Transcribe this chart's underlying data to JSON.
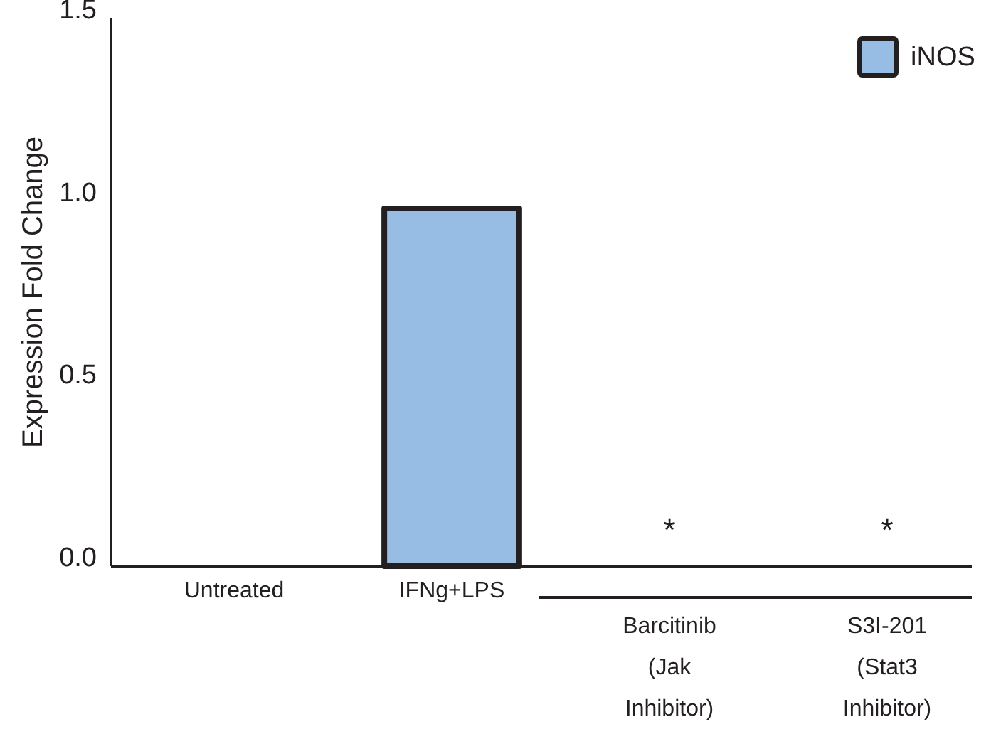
{
  "chart_data": {
    "type": "bar",
    "ylabel": "Expression Fold Change",
    "categories": [
      "Untreated",
      "IFNg+LPS",
      "Barcitinib\n(Jak\nInhibitor)",
      "S3I-201\n(Stat3\nInhibitor)"
    ],
    "series": [
      {
        "name": "iNOS",
        "color": "#97bde4",
        "values": [
          0,
          0.98,
          0,
          0
        ]
      }
    ],
    "ylim": [
      0,
      1.5
    ],
    "yticks": [
      {
        "value": 0,
        "label": "0.0"
      },
      {
        "value": 0.5,
        "label": "0.5"
      },
      {
        "value": 1,
        "label": "1.0"
      },
      {
        "value": 1.5,
        "label": "1.5"
      }
    ],
    "annotations": [
      "*",
      "*"
    ],
    "grid": false,
    "legend": "top right"
  }
}
